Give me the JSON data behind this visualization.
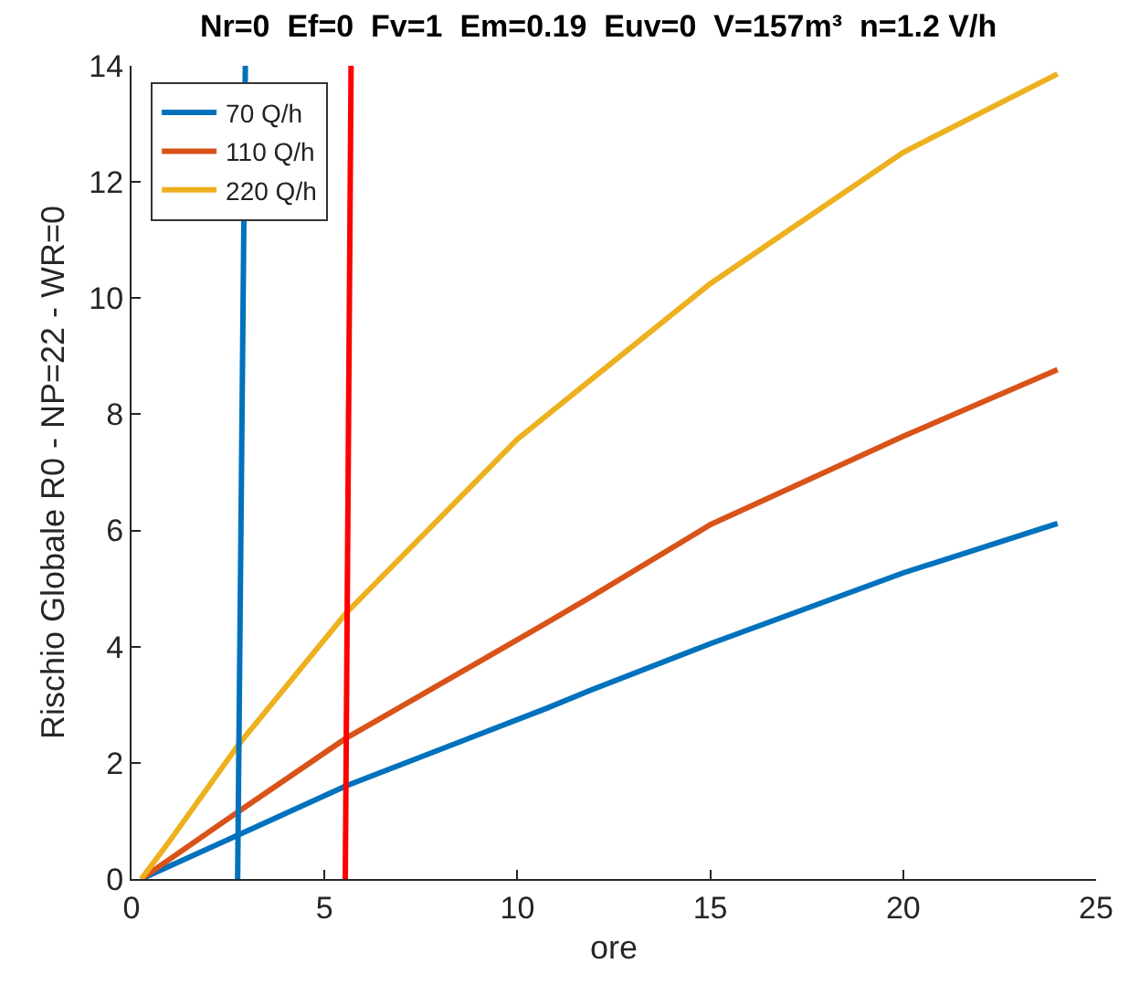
{
  "chart_data": {
    "type": "line",
    "title": "Nr=0  Ef=0  Fv=1  Em=0.19  Euv=0  V=157m³  n=1.2 V/h",
    "xlabel": "ore",
    "ylabel": "Rischio Globale R0 - NP=22 - WR=0",
    "xlim": [
      0,
      25
    ],
    "xticks": [
      0,
      5,
      10,
      15,
      20,
      25
    ],
    "ylim": [
      0,
      14
    ],
    "yticks": [
      0,
      2,
      4,
      6,
      8,
      10,
      12,
      14
    ],
    "grid": false,
    "legend": "top left",
    "marker": "none",
    "line_style": "solid",
    "series": [
      {
        "name": "70 Q/h",
        "color": "#0072bd",
        "x": [
          0.25,
          2.77,
          5.55,
          10.76,
          11.86,
          15,
          20,
          24
        ],
        "values": [
          0,
          0.76,
          1.6,
          2.94,
          3.24,
          4.05,
          5.27,
          6.12
        ]
      },
      {
        "name": "110 Q/h",
        "color": "#d95319",
        "x": [
          0.25,
          2.77,
          5.55,
          10.76,
          11.86,
          15,
          20,
          24
        ],
        "values": [
          0,
          1.16,
          2.42,
          4.41,
          4.84,
          6.1,
          7.62,
          8.77
        ]
      },
      {
        "name": "220 Q/h",
        "color": "#edb120",
        "x": [
          0.25,
          0.96,
          2.77,
          5.55,
          10,
          11.86,
          15,
          20,
          24
        ],
        "values": [
          0,
          0.63,
          2.31,
          4.57,
          7.57,
          8.57,
          10.25,
          12.51,
          13.86
        ]
      },
      {
        "color": "#0072bd",
        "x": [
          2.75,
          2.95
        ],
        "values": [
          0,
          14
        ]
      },
      {
        "color": "#ff0000",
        "x": [
          5.54,
          5.69
        ],
        "values": [
          0,
          14
        ]
      }
    ]
  }
}
